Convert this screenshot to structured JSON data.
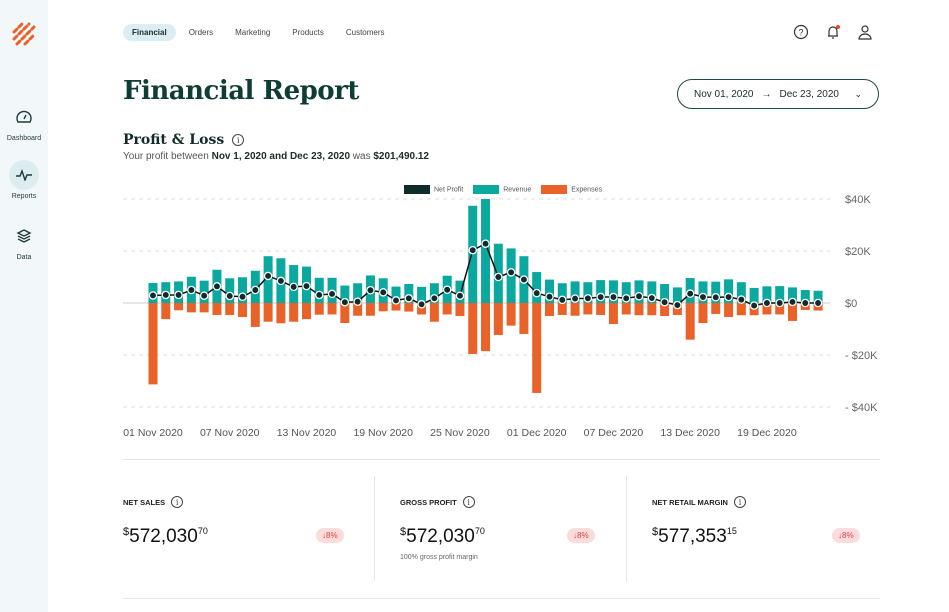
{
  "sidebar": {
    "items": [
      {
        "label": "Dashboard"
      },
      {
        "label": "Reports",
        "active": true
      },
      {
        "label": "Data"
      }
    ]
  },
  "tabs": [
    {
      "label": "Financial",
      "active": true
    },
    {
      "label": "Orders"
    },
    {
      "label": "Marketing"
    },
    {
      "label": "Products"
    },
    {
      "label": "Customers"
    }
  ],
  "header": {
    "title": "Financial Report",
    "date_from": "Nov 01, 2020",
    "date_to": "Dec 23, 2020"
  },
  "section": {
    "title": "Profit & Loss",
    "sub_prefix": "Your profit between ",
    "sub_range": "Nov 1, 2020 and Dec 23, 2020",
    "sub_mid": " was ",
    "sub_value": "$201,490.12"
  },
  "colors": {
    "revenue": "#0aa89e",
    "expenses": "#e8622a",
    "net": "#0f2b2b",
    "accent": "#0f3d36"
  },
  "chart_data": {
    "type": "bar",
    "legend": [
      "Net Profit",
      "Revenue",
      "Expenses"
    ],
    "x_tick_labels": [
      "01 Nov 2020",
      "07 Nov 2020",
      "13 Nov 2020",
      "19 Nov 2020",
      "25 Nov 2020",
      "01 Dec 2020",
      "07 Dec 2020",
      "13 Dec 2020",
      "19 Dec 2020"
    ],
    "y_tick_labels": [
      "$40K",
      "$20K",
      "$0",
      "- $20K",
      "- $40K"
    ],
    "ylim": [
      -40,
      40
    ],
    "unit": "K USD",
    "series": [
      {
        "name": "Revenue",
        "values": [
          7.7,
          8,
          8.3,
          10.1,
          8.6,
          12.8,
          9.5,
          9.9,
          12.4,
          18,
          17.2,
          14.6,
          14,
          9.7,
          9.7,
          6.7,
          7.6,
          10.6,
          9.5,
          6.3,
          7.3,
          6.2,
          7.6,
          10.5,
          8.6,
          37.4,
          40,
          22.8,
          21,
          18,
          11.9,
          9,
          7.6,
          8.3,
          8,
          8.8,
          8.7,
          8,
          8.7,
          8.3,
          7.3,
          6,
          9.6,
          8.3,
          8.2,
          9.1,
          8,
          5.8,
          6.4,
          6.5,
          6,
          5,
          4.7
        ]
      },
      {
        "name": "Expenses",
        "values": [
          -31.3,
          -6.2,
          -2.8,
          -3.6,
          -3.6,
          -4.6,
          -4.6,
          -5.4,
          -9.2,
          -7.2,
          -7.8,
          -7.2,
          -6.2,
          -4.5,
          -4.4,
          -7.7,
          -4.9,
          -4.9,
          -3.2,
          -2.9,
          -3.3,
          -4.4,
          -7.2,
          -4.4,
          -5,
          -19.6,
          -18.5,
          -12.3,
          -8.7,
          -11.9,
          -34.6,
          -5,
          -4.6,
          -4.9,
          -4.4,
          -4.6,
          -8.1,
          -4.4,
          -4.7,
          -4.7,
          -5,
          -4.6,
          -14.1,
          -7.7,
          -4.2,
          -5.4,
          -4.7,
          -4.7,
          -4.4,
          -4.4,
          -6.9,
          -2.7,
          -2.9
        ]
      },
      {
        "name": "Net Profit",
        "values": [
          2.9,
          3.1,
          3.1,
          5,
          2.8,
          6.4,
          2.7,
          2.4,
          5,
          10.4,
          8.5,
          6.2,
          6.5,
          3.1,
          3.5,
          0.3,
          0.5,
          4.9,
          4.1,
          1,
          1.8,
          -0.5,
          1.8,
          5.1,
          2.8,
          20.3,
          22.8,
          10,
          11.8,
          9,
          3.8,
          2.4,
          1.2,
          1.7,
          1.8,
          2.3,
          2.3,
          1.8,
          2.6,
          1.9,
          0.3,
          -0.8,
          3.6,
          2.3,
          2.2,
          2.3,
          1.3,
          -1,
          0,
          0,
          0.4,
          0,
          0
        ]
      }
    ]
  },
  "stats": [
    {
      "label": "NET SALES",
      "currency": "$",
      "value": "572,030",
      "cents": "70",
      "change": "↓8%"
    },
    {
      "label": "GROSS PROFIT",
      "currency": "$",
      "value": "572,030",
      "cents": "70",
      "change": "↓8%",
      "note": "100% gross profit margin"
    },
    {
      "label": "NET RETAIL MARGIN",
      "currency": "$",
      "value": "577,353",
      "cents": "15",
      "change": "↓8%"
    }
  ]
}
